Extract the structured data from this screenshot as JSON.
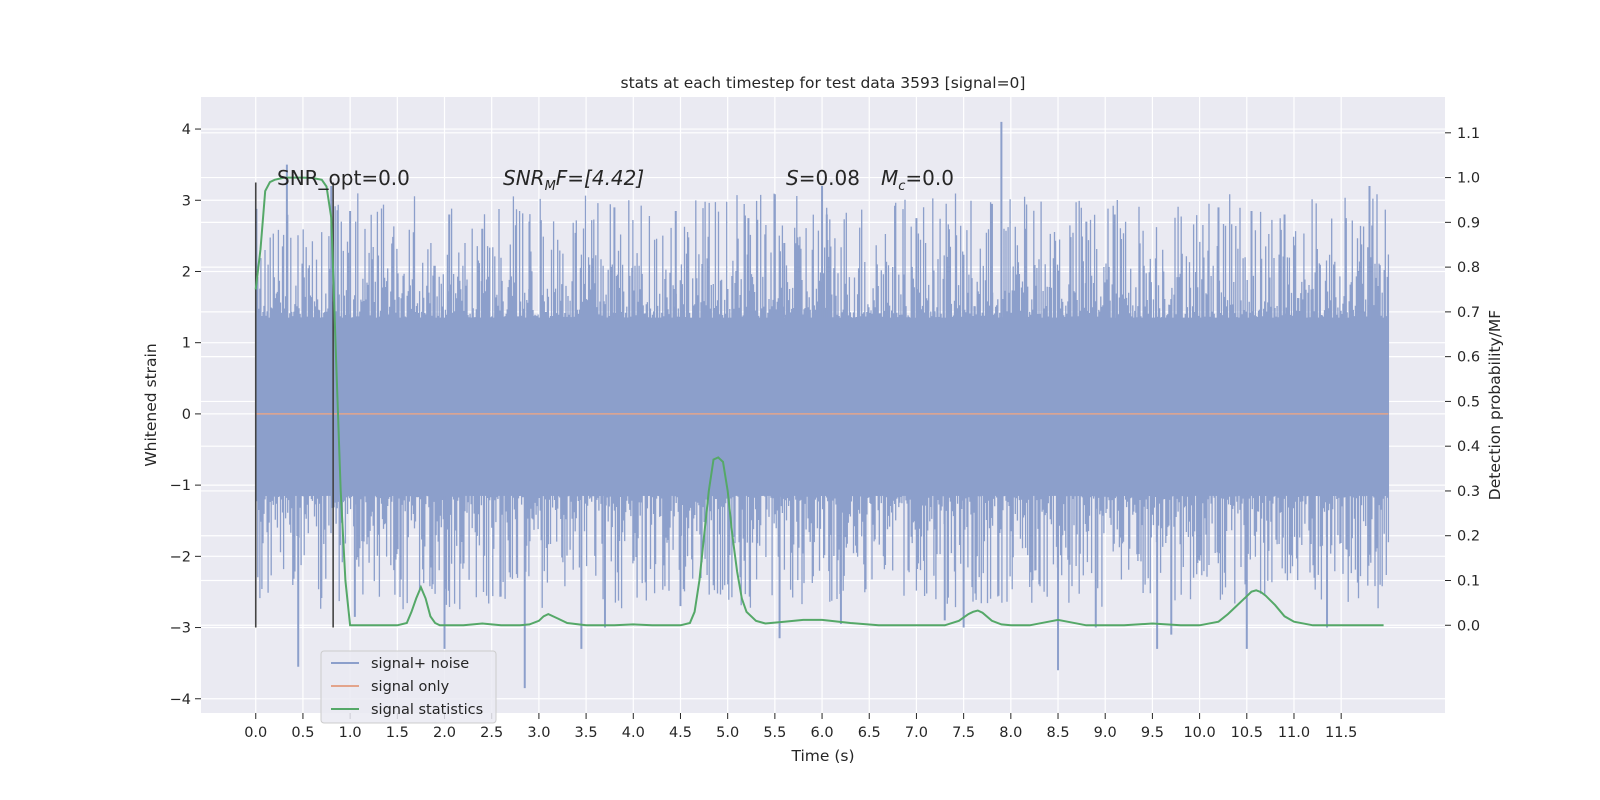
{
  "chart_data": {
    "type": "line",
    "title": "stats at each timestep for test data 3593 [signal=0]",
    "xlabel": "Time (s)",
    "ylabel_left": "Whitened strain",
    "ylabel_right": "Detection probability/MF",
    "xlim": [
      -0.58,
      12.6
    ],
    "ylim_left": [
      -4.2,
      4.45
    ],
    "ylim_right": [
      -0.196,
      1.18
    ],
    "grid": true,
    "background": "#EAEAF2",
    "x_ticks": [
      "0.0",
      "0.5",
      "1.0",
      "1.5",
      "2.0",
      "2.5",
      "3.0",
      "3.5",
      "4.0",
      "4.5",
      "5.0",
      "5.5",
      "6.0",
      "6.5",
      "7.0",
      "7.5",
      "8.0",
      "8.5",
      "9.0",
      "9.5",
      "10.0",
      "10.5",
      "11.0",
      "11.5"
    ],
    "y_ticks_left": [
      "−4",
      "−3",
      "−2",
      "−1",
      "0",
      "1",
      "2",
      "3",
      "4"
    ],
    "y_ticks_right": [
      "0.0",
      "0.1",
      "0.2",
      "0.3",
      "0.4",
      "0.5",
      "0.6",
      "0.7",
      "0.8",
      "0.9",
      "1.0",
      "1.1"
    ],
    "annotations": {
      "snr_opt": "SNR_opt=0.0",
      "snr_mf_main": "SNR",
      "snr_mf_sub": "M",
      "snr_mf_rest": "F=[4.42]",
      "s_main": "S",
      "s_rest": "=0.08",
      "mc_main": "M",
      "mc_sub": "c",
      "mc_rest": "=0.0"
    },
    "legend": {
      "placement": "lower left",
      "entries": [
        "signal+ noise",
        "signal only",
        "signal statistics"
      ]
    },
    "colors": {
      "signal_noise": "#8C9FCB",
      "signal_only": "#E3A48B",
      "signal_statistics": "#55A868",
      "markers": "#444444"
    },
    "series": [
      {
        "name": "signal+ noise",
        "axis": "left",
        "x_range": [
          0.0,
          12.0
        ],
        "band": [
          -1.15,
          1.35
        ],
        "range": [
          -3.85,
          4.1
        ],
        "spikes_up": [
          [
            0.33,
            3.5
          ],
          [
            0.8,
            3.2
          ],
          [
            1.0,
            2.85
          ],
          [
            2.05,
            2.8
          ],
          [
            2.4,
            2.6
          ],
          [
            2.9,
            2.7
          ],
          [
            3.8,
            2.9
          ],
          [
            4.45,
            2.85
          ],
          [
            5.22,
            2.75
          ],
          [
            5.6,
            2.4
          ],
          [
            6.0,
            3.2
          ],
          [
            6.05,
            2.8
          ],
          [
            7.0,
            2.75
          ],
          [
            7.8,
            2.95
          ],
          [
            7.9,
            4.1
          ],
          [
            8.15,
            2.6
          ],
          [
            8.8,
            2.7
          ],
          [
            9.1,
            2.8
          ],
          [
            10.2,
            2.9
          ],
          [
            10.55,
            2.85
          ],
          [
            10.9,
            2.8
          ],
          [
            11.55,
            2.75
          ],
          [
            11.8,
            3.2
          ]
        ],
        "spikes_down": [
          [
            0.45,
            -3.55
          ],
          [
            1.05,
            -2.85
          ],
          [
            2.0,
            -3.3
          ],
          [
            2.85,
            -3.85
          ],
          [
            3.45,
            -3.3
          ],
          [
            3.7,
            -3.0
          ],
          [
            4.5,
            -2.7
          ],
          [
            5.55,
            -3.15
          ],
          [
            6.2,
            -2.95
          ],
          [
            7.3,
            -2.9
          ],
          [
            7.5,
            -3.0
          ],
          [
            8.5,
            -3.6
          ],
          [
            8.9,
            -3.0
          ],
          [
            9.55,
            -3.3
          ],
          [
            9.7,
            -3.1
          ],
          [
            10.5,
            -3.3
          ],
          [
            11.35,
            -3.0
          ]
        ]
      },
      {
        "name": "signal only",
        "axis": "left",
        "x": [
          0.0,
          12.0
        ],
        "y": [
          0.0,
          0.0
        ]
      },
      {
        "name": "signal statistics",
        "axis": "right",
        "x": [
          0.0,
          0.05,
          0.1,
          0.15,
          0.2,
          0.3,
          0.4,
          0.5,
          0.6,
          0.7,
          0.75,
          0.8,
          0.85,
          0.9,
          0.95,
          1.0,
          1.1,
          1.2,
          1.4,
          1.5,
          1.6,
          1.65,
          1.7,
          1.75,
          1.8,
          1.85,
          1.9,
          1.95,
          2.0,
          2.2,
          2.4,
          2.6,
          2.8,
          2.9,
          3.0,
          3.05,
          3.1,
          3.2,
          3.3,
          3.5,
          3.8,
          4.0,
          4.2,
          4.4,
          4.5,
          4.6,
          4.65,
          4.7,
          4.75,
          4.8,
          4.85,
          4.9,
          4.95,
          5.0,
          5.05,
          5.1,
          5.15,
          5.2,
          5.3,
          5.4,
          5.6,
          5.8,
          6.0,
          6.3,
          6.6,
          7.0,
          7.3,
          7.45,
          7.55,
          7.6,
          7.65,
          7.7,
          7.8,
          7.9,
          8.0,
          8.2,
          8.4,
          8.5,
          8.6,
          8.8,
          9.0,
          9.2,
          9.5,
          9.8,
          10.0,
          10.2,
          10.3,
          10.4,
          10.5,
          10.55,
          10.6,
          10.65,
          10.7,
          10.8,
          10.9,
          11.0,
          11.2,
          11.5,
          11.8,
          11.95
        ],
        "y": [
          0.75,
          0.84,
          0.97,
          0.99,
          0.995,
          1.0,
          1.0,
          1.0,
          0.999,
          0.995,
          0.98,
          0.91,
          0.6,
          0.3,
          0.1,
          0.0,
          0.0,
          0.0,
          0.0,
          0.0,
          0.005,
          0.03,
          0.06,
          0.085,
          0.06,
          0.02,
          0.005,
          0.0,
          0.0,
          0.0,
          0.004,
          0.0,
          0.0,
          0.002,
          0.01,
          0.02,
          0.025,
          0.015,
          0.005,
          0.0,
          0.0,
          0.002,
          0.0,
          0.0,
          0.0,
          0.005,
          0.03,
          0.1,
          0.2,
          0.3,
          0.37,
          0.375,
          0.365,
          0.3,
          0.2,
          0.12,
          0.06,
          0.03,
          0.01,
          0.004,
          0.008,
          0.012,
          0.012,
          0.005,
          0.0,
          0.0,
          0.0,
          0.01,
          0.025,
          0.03,
          0.033,
          0.028,
          0.01,
          0.002,
          0.0,
          0.0,
          0.008,
          0.012,
          0.008,
          0.0,
          0.0,
          0.0,
          0.004,
          0.0,
          0.0,
          0.008,
          0.025,
          0.045,
          0.065,
          0.075,
          0.078,
          0.074,
          0.066,
          0.045,
          0.02,
          0.008,
          0.0,
          0.0,
          0.0,
          0.0
        ]
      }
    ],
    "vertical_markers": [
      {
        "x": 0.0,
        "y_from": -3.0,
        "y_to": 3.25
      },
      {
        "x": 0.82,
        "y_from": -3.0,
        "y_to": 3.25
      }
    ]
  }
}
